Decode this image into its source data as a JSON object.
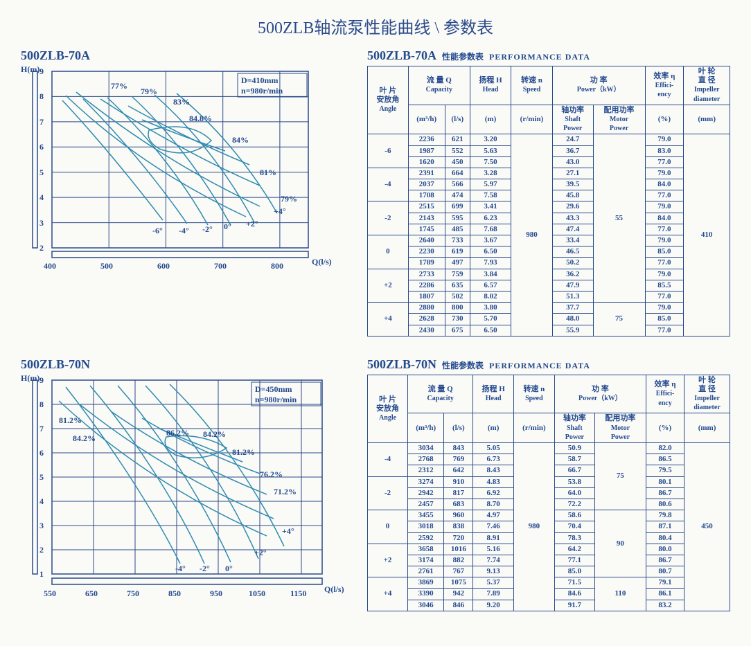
{
  "page_title": "500ZLB轴流泵性能曲线 \\ 参数表",
  "colors": {
    "ink": "#244a8e",
    "grid": "#2a4a8a",
    "curve": "#2f8bb0",
    "bg": "#fafaf7"
  },
  "subtitle_cn": "性能参数表",
  "subtitle_en": "PERFORMANCE  DATA",
  "headers": {
    "angle_cn": "叶 片\n安放角",
    "angle_en": "Angle",
    "capacity_cn": "流 量 Q",
    "capacity_en": "Capacity",
    "cap_u1": "(m³/h)",
    "cap_u2": "(l/s)",
    "head_cn": "扬程 H",
    "head_en": "Head",
    "head_u": "(m)",
    "speed_cn": "转速 n",
    "speed_en": "Speed",
    "speed_u": "(r/min)",
    "power_cn": "功 率",
    "power_en": "Power（kW）",
    "shaft_cn": "轴功率",
    "shaft_en": "Shaft\nPower",
    "motor_cn": "配用功率",
    "motor_en": "Motor\nPower",
    "eff_cn": "效率 η",
    "eff_en": "Effici-\nency",
    "eff_u": "(%)",
    "imp_cn": "叶 轮\n直 径",
    "imp_en": "Impeller\ndiameter",
    "imp_u": "(mm)"
  },
  "chart1": {
    "model": "500ZLB-70A",
    "y_label": "H(m)",
    "x_label": "Q(l/s)",
    "param1": "D=410mm",
    "param2": "n=980r/min",
    "xlim": [
      400,
      850
    ],
    "xticks": [
      400,
      500,
      600,
      700,
      800
    ],
    "ylim": [
      2,
      9
    ],
    "yticks": [
      2,
      3,
      4,
      5,
      6,
      7,
      8,
      9
    ],
    "eff_labels": [
      "77%",
      "79%",
      "83%",
      "84.8%",
      "84%",
      "81%",
      "79%"
    ],
    "angle_labels": [
      "-6°",
      "-4°",
      "-2°",
      "0°",
      "+2°",
      "+4°"
    ]
  },
  "chart2": {
    "model": "500ZLB-70N",
    "y_label": "H(m)",
    "x_label": "Q(l/s)",
    "param1": "D=450mm",
    "param2": "n=980r/min",
    "xlim": [
      550,
      1200
    ],
    "xticks": [
      550,
      650,
      750,
      850,
      950,
      1050,
      1150
    ],
    "ylim": [
      1,
      9
    ],
    "yticks": [
      1,
      2,
      3,
      4,
      5,
      6,
      7,
      8,
      9
    ],
    "eff_labels": [
      "81.2%",
      "84.2%",
      "86.2%",
      "84.2%",
      "81.2%",
      "76.2%",
      "71.2%"
    ],
    "angle_labels": [
      "-4°",
      "-2°",
      "0°",
      "+2°",
      "+4°"
    ]
  },
  "table1": {
    "model": "500ZLB-70A",
    "speed": "980",
    "diameter": "410",
    "groups": [
      {
        "angle": "-6",
        "motor": "",
        "rows": [
          [
            "2236",
            "621",
            "3.20",
            "24.7",
            "79.0"
          ],
          [
            "1987",
            "552",
            "5.63",
            "36.7",
            "83.0"
          ],
          [
            "1620",
            "450",
            "7.50",
            "43.0",
            "77.0"
          ]
        ]
      },
      {
        "angle": "-4",
        "motor": "",
        "rows": [
          [
            "2391",
            "664",
            "3.28",
            "27.1",
            "79.0"
          ],
          [
            "2037",
            "566",
            "5.97",
            "39.5",
            "84.0"
          ],
          [
            "1708",
            "474",
            "7.58",
            "45.8",
            "77.0"
          ]
        ]
      },
      {
        "angle": "-2",
        "motor": "55",
        "rows": [
          [
            "2515",
            "699",
            "3.41",
            "29.6",
            "79.0"
          ],
          [
            "2143",
            "595",
            "6.23",
            "43.3",
            "84.0"
          ],
          [
            "1745",
            "485",
            "7.68",
            "47.4",
            "77.0"
          ]
        ]
      },
      {
        "angle": "0",
        "motor": "",
        "rows": [
          [
            "2640",
            "733",
            "3.67",
            "33.4",
            "79.0"
          ],
          [
            "2230",
            "619",
            "6.50",
            "46.5",
            "85.0"
          ],
          [
            "1789",
            "497",
            "7.93",
            "50.2",
            "77.0"
          ]
        ]
      },
      {
        "angle": "+2",
        "motor": "",
        "rows": [
          [
            "2733",
            "759",
            "3.84",
            "36.2",
            "79.0"
          ],
          [
            "2286",
            "635",
            "6.57",
            "47.9",
            "85.5"
          ],
          [
            "1807",
            "502",
            "8.02",
            "51.3",
            "77.0"
          ]
        ]
      },
      {
        "angle": "+4",
        "motor": "75",
        "rows": [
          [
            "2880",
            "800",
            "3.80",
            "37.7",
            "79.0"
          ],
          [
            "2628",
            "730",
            "5.70",
            "48.0",
            "85.0"
          ],
          [
            "2430",
            "675",
            "6.50",
            "55.9",
            "77.0"
          ]
        ]
      }
    ]
  },
  "table2": {
    "model": "500ZLB-70N",
    "speed": "980",
    "diameter": "450",
    "groups": [
      {
        "angle": "-4",
        "motor": "75",
        "rows": [
          [
            "3034",
            "843",
            "5.05",
            "50.9",
            "82.0"
          ],
          [
            "2768",
            "769",
            "6.73",
            "58.7",
            "86.5"
          ],
          [
            "2312",
            "642",
            "8.43",
            "66.7",
            "79.5"
          ]
        ]
      },
      {
        "angle": "-2",
        "motor": "",
        "rows": [
          [
            "3274",
            "910",
            "4.83",
            "53.8",
            "80.1"
          ],
          [
            "2942",
            "817",
            "6.92",
            "64.0",
            "86.7"
          ],
          [
            "2457",
            "683",
            "8.70",
            "72.2",
            "80.6"
          ]
        ]
      },
      {
        "angle": "0",
        "motor": "",
        "rows": [
          [
            "3455",
            "960",
            "4.97",
            "58.6",
            "79.8"
          ],
          [
            "3018",
            "838",
            "7.46",
            "70.4",
            "87.1"
          ],
          [
            "2592",
            "720",
            "8.91",
            "78.3",
            "80.4"
          ]
        ]
      },
      {
        "angle": "+2",
        "motor": "90",
        "rows": [
          [
            "3658",
            "1016",
            "5.16",
            "64.2",
            "80.0"
          ],
          [
            "3174",
            "882",
            "7.74",
            "77.1",
            "86.7"
          ],
          [
            "2761",
            "767",
            "9.13",
            "85.0",
            "80.7"
          ]
        ]
      },
      {
        "angle": "+4",
        "motor": "110",
        "rows": [
          [
            "3869",
            "1075",
            "5.37",
            "71.5",
            "79.1"
          ],
          [
            "3390",
            "942",
            "7.89",
            "84.6",
            "86.1"
          ],
          [
            "3046",
            "846",
            "9.20",
            "91.7",
            "83.2"
          ]
        ]
      }
    ]
  }
}
